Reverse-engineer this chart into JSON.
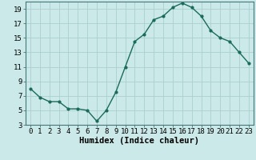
{
  "x": [
    0,
    1,
    2,
    3,
    4,
    5,
    6,
    7,
    8,
    9,
    10,
    11,
    12,
    13,
    14,
    15,
    16,
    17,
    18,
    19,
    20,
    21,
    22,
    23
  ],
  "y": [
    8.0,
    6.8,
    6.2,
    6.2,
    5.2,
    5.2,
    5.0,
    3.5,
    5.0,
    7.5,
    11.0,
    14.5,
    15.5,
    17.5,
    18.0,
    19.2,
    19.8,
    19.2,
    18.0,
    16.0,
    15.0,
    14.5,
    13.0,
    11.5
  ],
  "line_color": "#1a6b5a",
  "marker": "o",
  "marker_size": 2.0,
  "bg_color": "#cce9e9",
  "grid_color": "#aacfcf",
  "xlabel": "Humidex (Indice chaleur)",
  "ylabel": "",
  "xlim": [
    -0.5,
    23.5
  ],
  "ylim": [
    3,
    20
  ],
  "xticks": [
    0,
    1,
    2,
    3,
    4,
    5,
    6,
    7,
    8,
    9,
    10,
    11,
    12,
    13,
    14,
    15,
    16,
    17,
    18,
    19,
    20,
    21,
    22,
    23
  ],
  "yticks": [
    3,
    5,
    7,
    9,
    11,
    13,
    15,
    17,
    19
  ],
  "tick_fontsize": 6.5,
  "xlabel_fontsize": 7.5,
  "line_width": 1.0
}
